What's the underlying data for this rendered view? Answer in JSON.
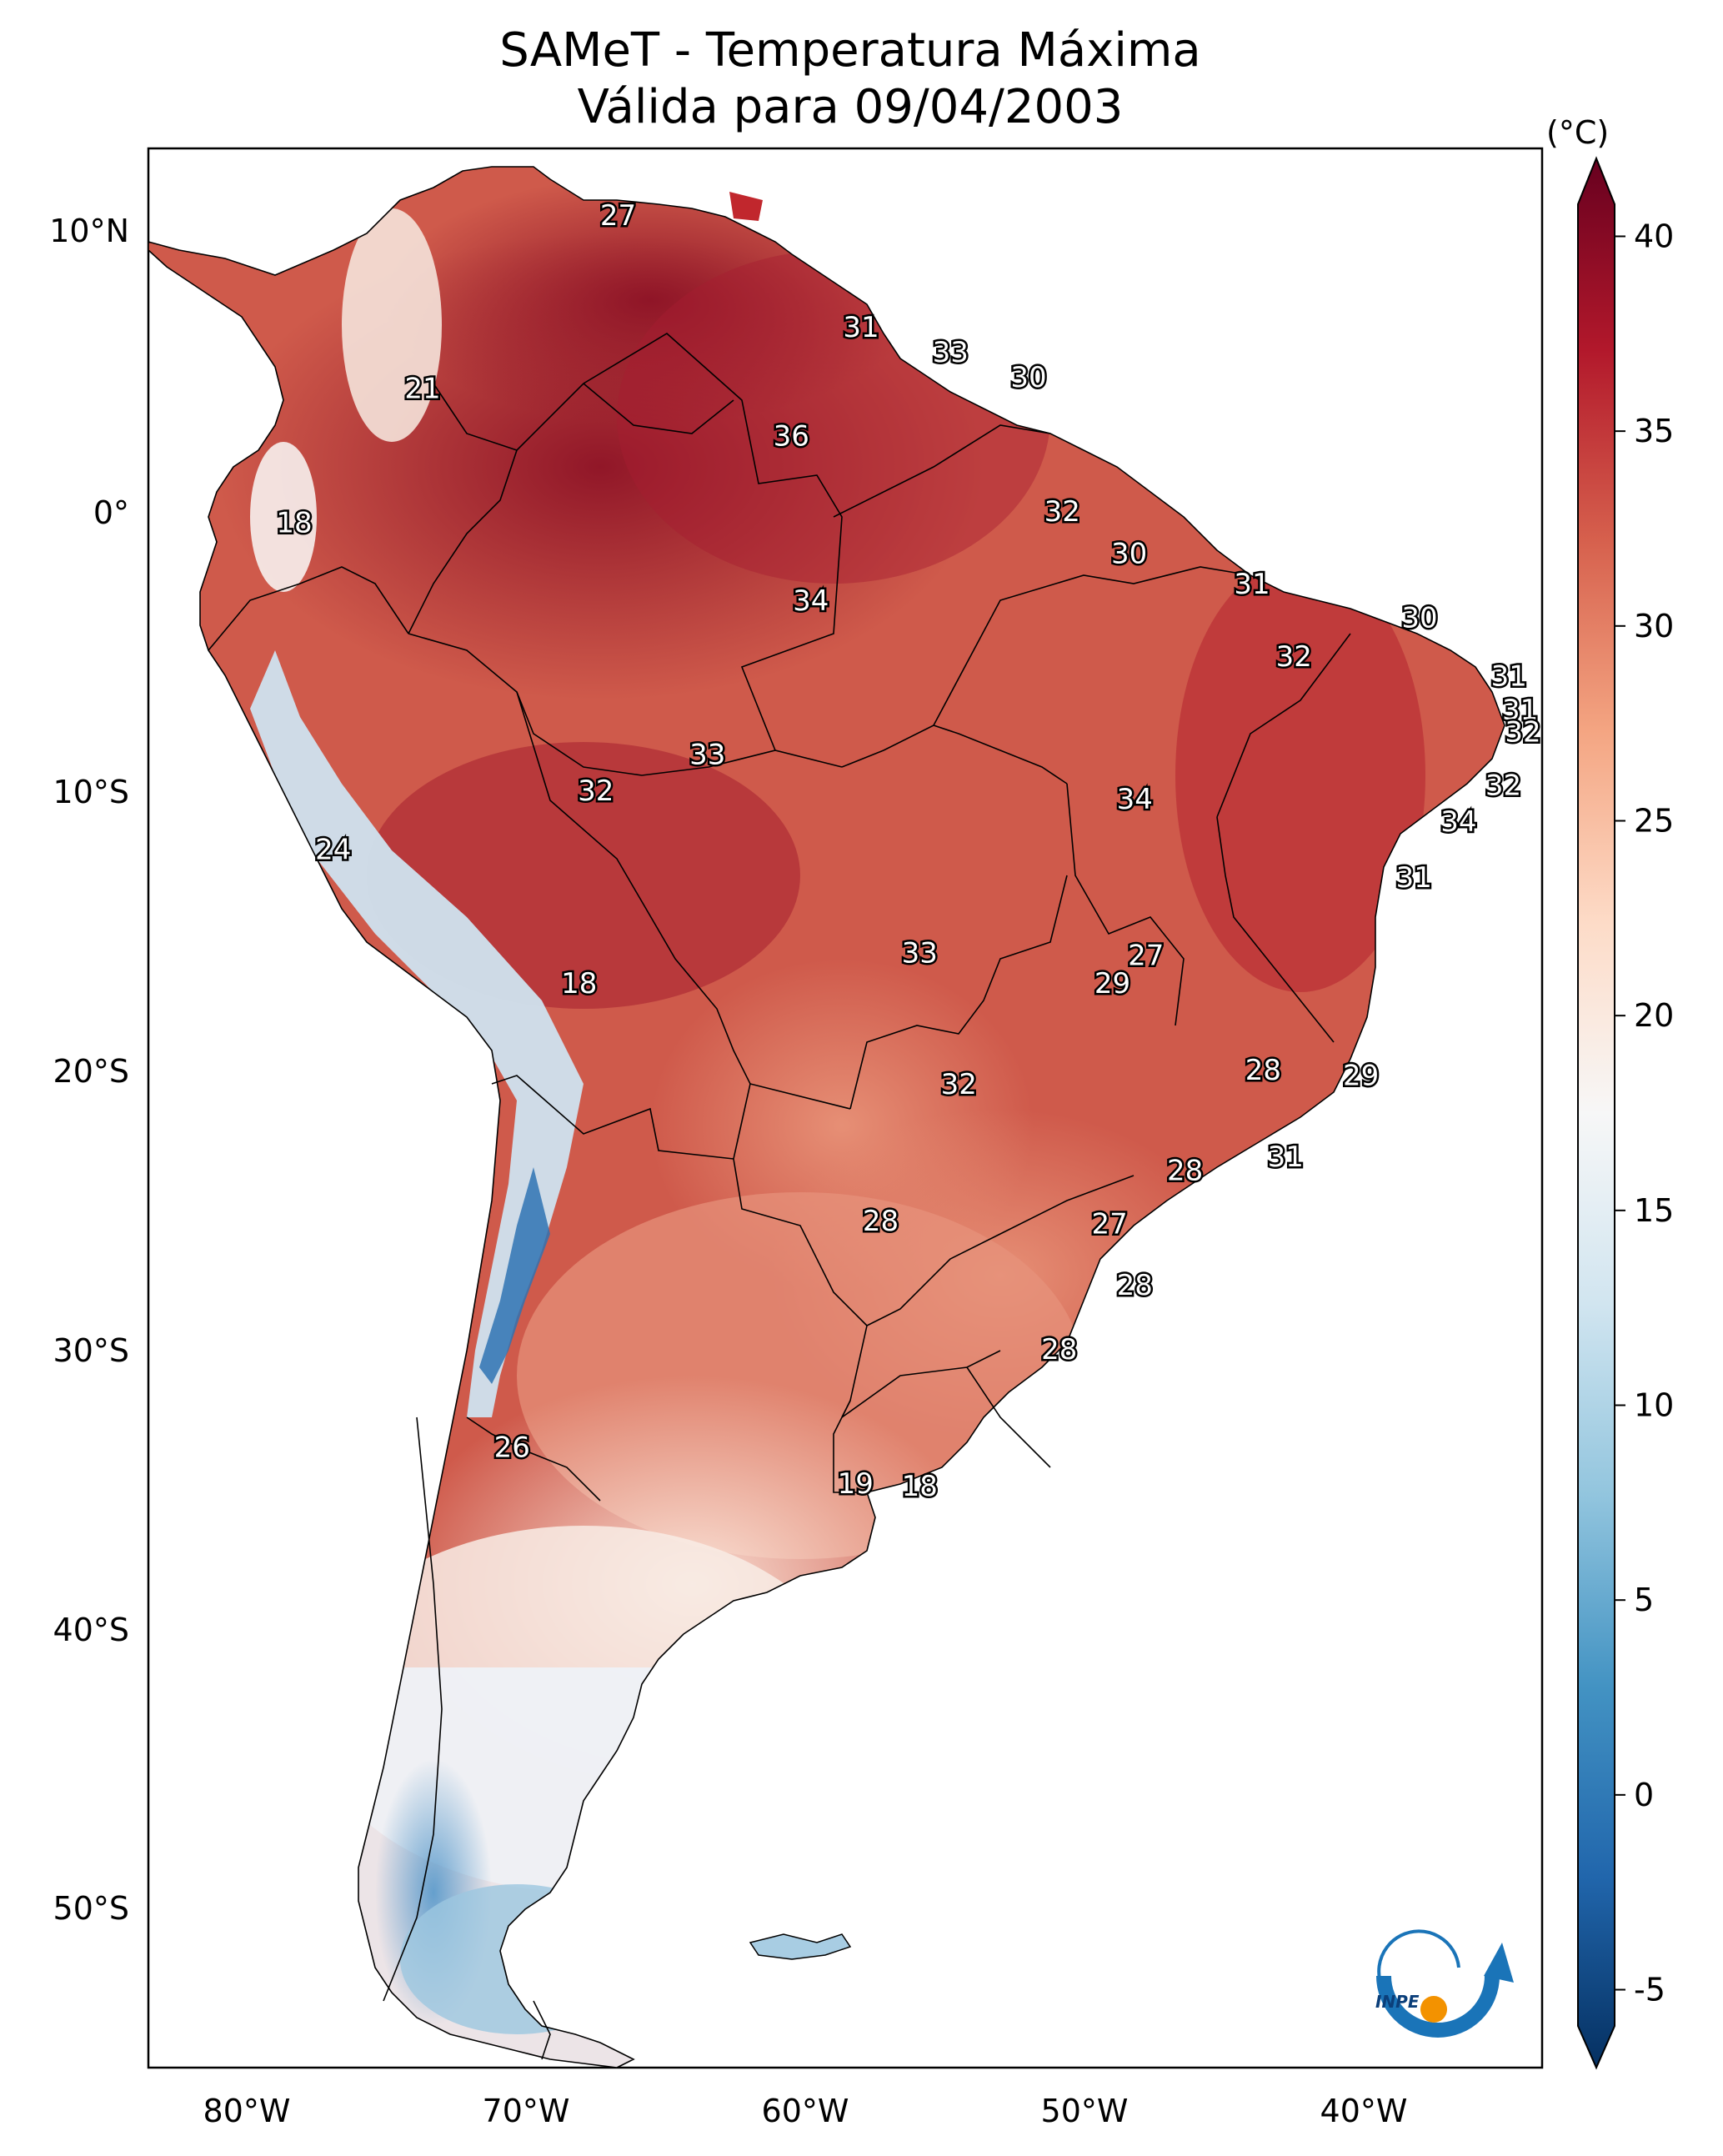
{
  "title": {
    "line1": "SAMeT - Temperatura Máxima",
    "line2": "Válida para 09/04/2003"
  },
  "axes": {
    "lat_labels": [
      "10°N",
      "0°",
      "10°S",
      "20°S",
      "30°S",
      "40°S",
      "50°S"
    ],
    "lon_labels": [
      "80°W",
      "70°W",
      "60°W",
      "50°W",
      "40°W"
    ]
  },
  "colorbar": {
    "unit_label": "(°C)",
    "tick_labels": [
      "40",
      "35",
      "30",
      "25",
      "20",
      "15",
      "10",
      "5",
      "0",
      "-5"
    ],
    "min": -7,
    "max": 42,
    "colors": [
      "#053061",
      "#2166ac",
      "#4393c3",
      "#92c5de",
      "#d1e5f0",
      "#f7f7f7",
      "#fddbc7",
      "#f4a582",
      "#d6604d",
      "#b2182b",
      "#67001f"
    ]
  },
  "contour_labels": [
    {
      "text": "27",
      "lon": -66.7,
      "lat": 10.6
    },
    {
      "text": "21",
      "lon": -73.7,
      "lat": 4.4
    },
    {
      "text": "31",
      "lon": -58.0,
      "lat": 6.6
    },
    {
      "text": "33",
      "lon": -54.8,
      "lat": 5.7
    },
    {
      "text": "30",
      "lon": -52.0,
      "lat": 4.8
    },
    {
      "text": "36",
      "lon": -60.5,
      "lat": 2.7
    },
    {
      "text": "18",
      "lon": -78.3,
      "lat": -0.4
    },
    {
      "text": "32",
      "lon": -50.8,
      "lat": 0.0
    },
    {
      "text": "30",
      "lon": -48.4,
      "lat": -1.5
    },
    {
      "text": "31",
      "lon": -44.0,
      "lat": -2.6
    },
    {
      "text": "34",
      "lon": -59.8,
      "lat": -3.2
    },
    {
      "text": "30",
      "lon": -38.0,
      "lat": -3.8
    },
    {
      "text": "32",
      "lon": -42.5,
      "lat": -5.2
    },
    {
      "text": "31",
      "lon": -34.8,
      "lat": -5.9
    },
    {
      "text": "31",
      "lon": -34.4,
      "lat": -7.1
    },
    {
      "text": "32",
      "lon": -34.3,
      "lat": -7.9
    },
    {
      "text": "33",
      "lon": -63.5,
      "lat": -8.7
    },
    {
      "text": "32",
      "lon": -67.5,
      "lat": -10.0
    },
    {
      "text": "32",
      "lon": -35.0,
      "lat": -9.8
    },
    {
      "text": "34",
      "lon": -48.2,
      "lat": -10.3
    },
    {
      "text": "34",
      "lon": -36.6,
      "lat": -11.1
    },
    {
      "text": "24",
      "lon": -76.9,
      "lat": -12.1
    },
    {
      "text": "31",
      "lon": -38.2,
      "lat": -13.1
    },
    {
      "text": "18",
      "lon": -68.1,
      "lat": -16.9
    },
    {
      "text": "33",
      "lon": -55.9,
      "lat": -15.8
    },
    {
      "text": "27",
      "lon": -47.8,
      "lat": -15.9
    },
    {
      "text": "29",
      "lon": -49.0,
      "lat": -16.9
    },
    {
      "text": "28",
      "lon": -43.6,
      "lat": -20.0
    },
    {
      "text": "29",
      "lon": -40.1,
      "lat": -20.2
    },
    {
      "text": "32",
      "lon": -54.5,
      "lat": -20.5
    },
    {
      "text": "28",
      "lon": -46.4,
      "lat": -23.6
    },
    {
      "text": "31",
      "lon": -42.8,
      "lat": -23.1
    },
    {
      "text": "28",
      "lon": -57.3,
      "lat": -25.4
    },
    {
      "text": "27",
      "lon": -49.1,
      "lat": -25.5
    },
    {
      "text": "28",
      "lon": -48.2,
      "lat": -27.7
    },
    {
      "text": "28",
      "lon": -50.9,
      "lat": -30.0
    },
    {
      "text": "26",
      "lon": -70.5,
      "lat": -33.5
    },
    {
      "text": "19",
      "lon": -58.2,
      "lat": -34.8
    },
    {
      "text": "18",
      "lon": -55.9,
      "lat": -34.9
    }
  ],
  "logo": {
    "text": "INPE",
    "colors": {
      "arc": "#1a74b8",
      "dot": "#f39200"
    }
  }
}
